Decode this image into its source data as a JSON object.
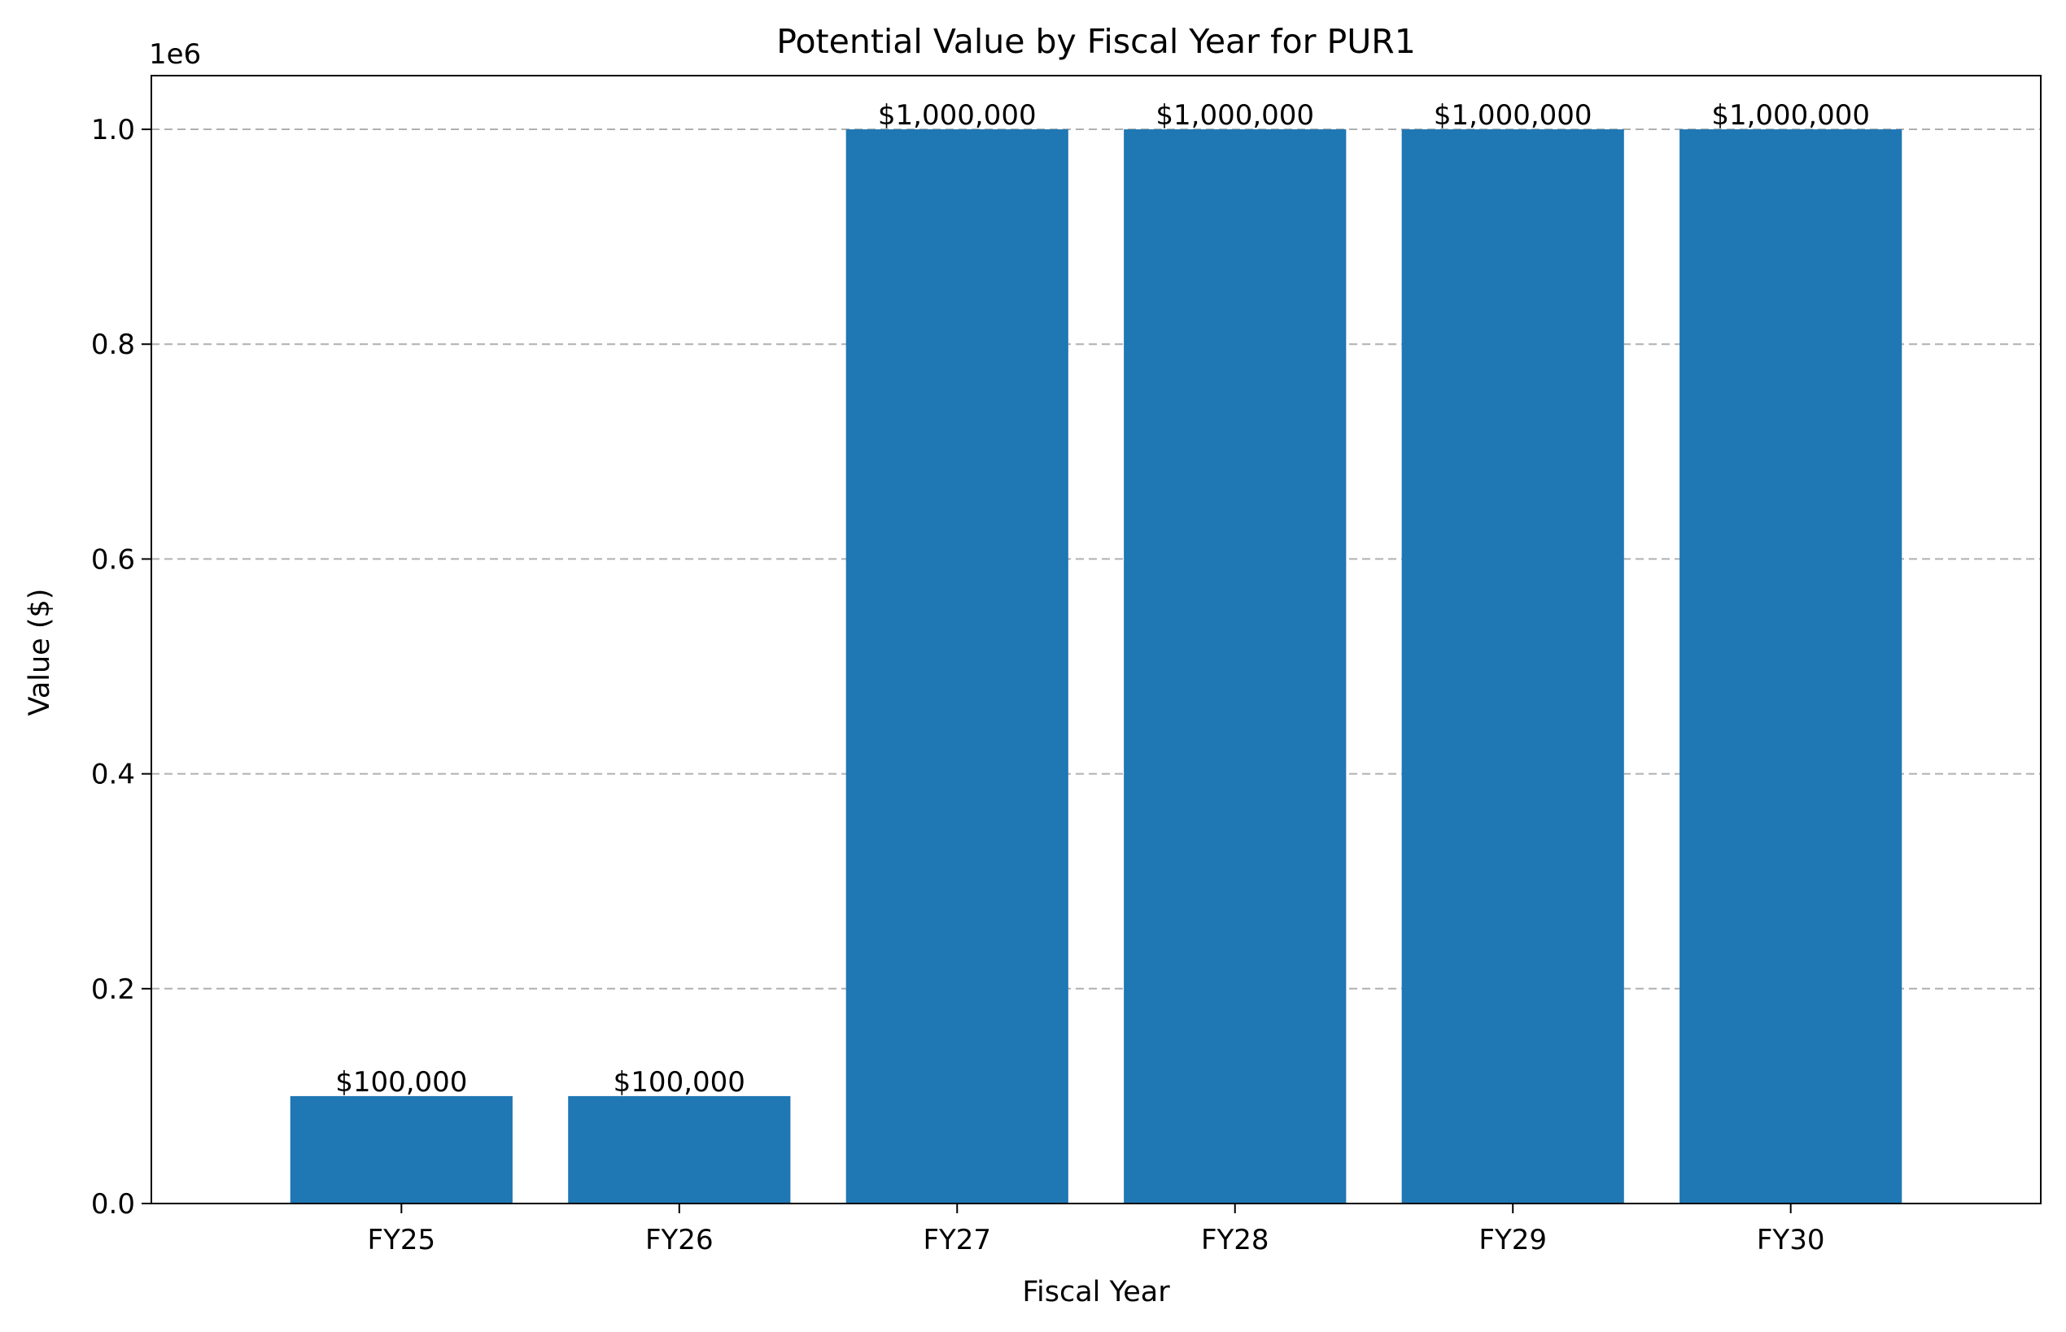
{
  "chart_data": {
    "type": "bar",
    "title": "Potential Value by Fiscal Year for PUR1",
    "xlabel": "Fiscal Year",
    "ylabel": "Value ($)",
    "categories": [
      "FY25",
      "FY26",
      "FY27",
      "FY28",
      "FY29",
      "FY30"
    ],
    "values": [
      100000,
      100000,
      1000000,
      1000000,
      1000000,
      1000000
    ],
    "value_labels": [
      "$100,000",
      "$100,000",
      "$1,000,000",
      "$1,000,000",
      "$1,000,000",
      "$1,000,000"
    ],
    "ylim": [
      0,
      1050000
    ],
    "yticks": [
      0,
      200000,
      400000,
      600000,
      800000,
      1000000
    ],
    "ytick_labels": [
      "0.0",
      "0.2",
      "0.4",
      "0.6",
      "0.8",
      "1.0"
    ],
    "y_offset_label": "1e6",
    "grid": "y-dashed",
    "legend": "none",
    "bar_color": "#1f77b4",
    "grid_color": "#b0b0b0"
  }
}
